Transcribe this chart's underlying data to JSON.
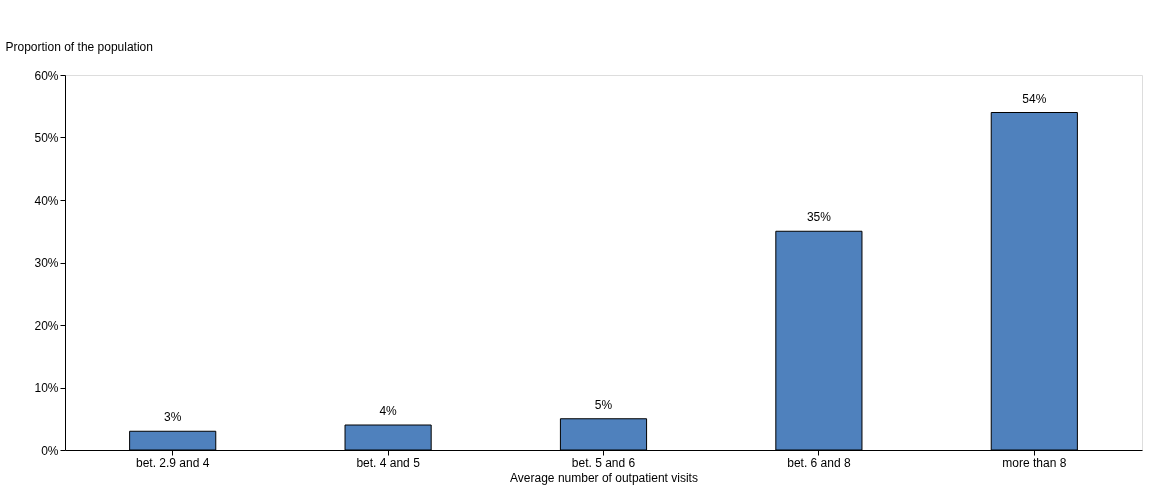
{
  "chart_data": {
    "type": "bar",
    "xlabel": "Average number of outpatient visits",
    "ylabel": "Proportion of the population",
    "categories": [
      "bet. 2.9 and 4",
      "bet. 4 and 5",
      "bet. 5 and 6",
      "bet. 6 and 8",
      "more than 8"
    ],
    "values": [
      3,
      4,
      5,
      35,
      54
    ],
    "color": "#4f81bd",
    "value_labels": [
      "3%",
      "4%",
      "5%",
      "35%",
      "54%"
    ],
    "ylim": [
      0,
      60
    ],
    "yticks": [
      {
        "value": 0,
        "label": "0%"
      },
      {
        "value": 10,
        "label": "10%"
      },
      {
        "value": 20,
        "label": "20%"
      },
      {
        "value": 30,
        "label": "30%"
      },
      {
        "value": 40,
        "label": "40%"
      },
      {
        "value": 50,
        "label": "50%"
      },
      {
        "value": 60,
        "label": "60%"
      }
    ],
    "grid": false
  }
}
